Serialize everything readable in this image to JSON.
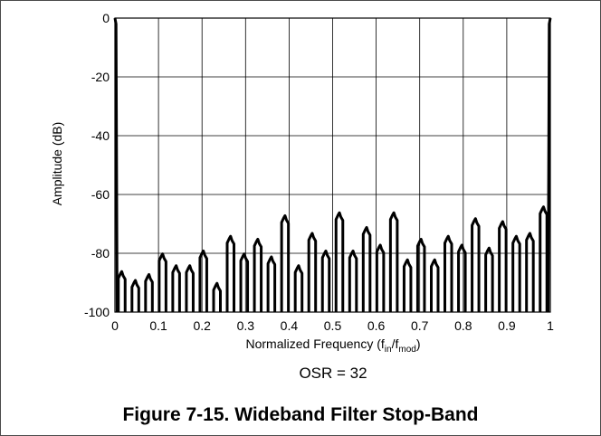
{
  "chart_data": {
    "type": "line",
    "xlabel_prefix": "Normalized Frequency  (f",
    "xlabel_sub_in": "in",
    "xlabel_slash": "/f",
    "xlabel_sub_mod": "mod",
    "xlabel_suffix": ")",
    "ylabel": "Amplitude (dB)",
    "annotation": "OSR = 32",
    "caption": "Figure 7-15. Wideband Filter Stop-Band",
    "xlim": [
      0,
      1
    ],
    "ylim": [
      -100,
      0
    ],
    "grid": true,
    "x_ticks": [
      "0",
      "0.1",
      "0.2",
      "0.3",
      "0.4",
      "0.5",
      "0.6",
      "0.7",
      "0.8",
      "0.9",
      "1"
    ],
    "y_ticks": [
      "0",
      "-20",
      "-40",
      "-60",
      "-80",
      "-100"
    ],
    "lobe_width": 0.0156,
    "lobe_peaks": [
      [
        0.0156,
        -87
      ],
      [
        0.0469,
        -90
      ],
      [
        0.0781,
        -88
      ],
      [
        0.1094,
        -81
      ],
      [
        0.1406,
        -85
      ],
      [
        0.1719,
        -85
      ],
      [
        0.2031,
        -80
      ],
      [
        0.2344,
        -91
      ],
      [
        0.2656,
        -75
      ],
      [
        0.2969,
        -81
      ],
      [
        0.3281,
        -76
      ],
      [
        0.3594,
        -82
      ],
      [
        0.3906,
        -68
      ],
      [
        0.4219,
        -85
      ],
      [
        0.4531,
        -74
      ],
      [
        0.4844,
        -80
      ],
      [
        0.5156,
        -67
      ],
      [
        0.5469,
        -80
      ],
      [
        0.5781,
        -72
      ],
      [
        0.6094,
        -78
      ],
      [
        0.6406,
        -67
      ],
      [
        0.6719,
        -83
      ],
      [
        0.7031,
        -76
      ],
      [
        0.7344,
        -83
      ],
      [
        0.7656,
        -75
      ],
      [
        0.7969,
        -78
      ],
      [
        0.8281,
        -69
      ],
      [
        0.8594,
        -79
      ],
      [
        0.8906,
        -70
      ],
      [
        0.9219,
        -75
      ],
      [
        0.9531,
        -74
      ],
      [
        0.9844,
        -65
      ]
    ],
    "passband_edges": [
      [
        0.005,
        -100
      ],
      [
        0.995,
        -100
      ]
    ]
  }
}
